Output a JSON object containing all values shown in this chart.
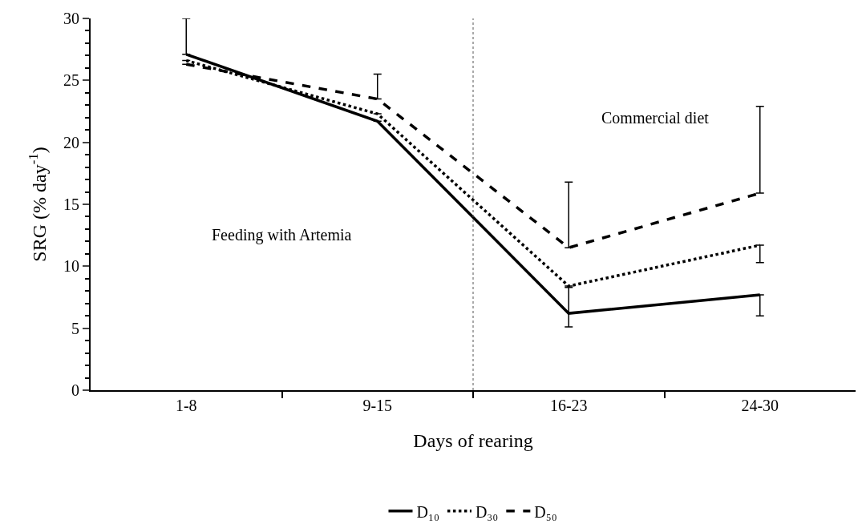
{
  "chart_data": {
    "type": "line",
    "xlabel": "Days of rearing",
    "ylabel": "SRG (% day$^{-1}$)",
    "categories": [
      "1-8",
      "9-15",
      "16-23",
      "24-30"
    ],
    "series": [
      {
        "name": "D₁₀",
        "color": "#000000",
        "line_style": "solid",
        "values": [
          27.1,
          21.7,
          6.2,
          7.7
        ],
        "errors": [
          [
            27.1,
            30.0
          ],
          null,
          [
            5.1,
            8.3
          ],
          [
            6.0,
            7.7
          ]
        ]
      },
      {
        "name": "D₃₀",
        "color": "#000000",
        "line_style": "dotted",
        "values": [
          26.6,
          22.3,
          8.4,
          11.7
        ],
        "errors": [
          null,
          null,
          null,
          [
            10.3,
            11.7
          ]
        ]
      },
      {
        "name": "D₅₀",
        "color": "#000000",
        "line_style": "dashed",
        "values": [
          26.3,
          23.5,
          11.5,
          15.9
        ],
        "errors": [
          null,
          [
            23.5,
            25.5
          ],
          [
            11.5,
            16.8
          ],
          [
            15.9,
            22.9
          ]
        ]
      }
    ],
    "ylim": [
      0,
      30
    ],
    "yticks": [
      0,
      5,
      10,
      15,
      20,
      25,
      30
    ],
    "annotations": [
      "Feeding with Artemia",
      "Commercial diet"
    ],
    "legend": "bottom",
    "marker": "none"
  }
}
